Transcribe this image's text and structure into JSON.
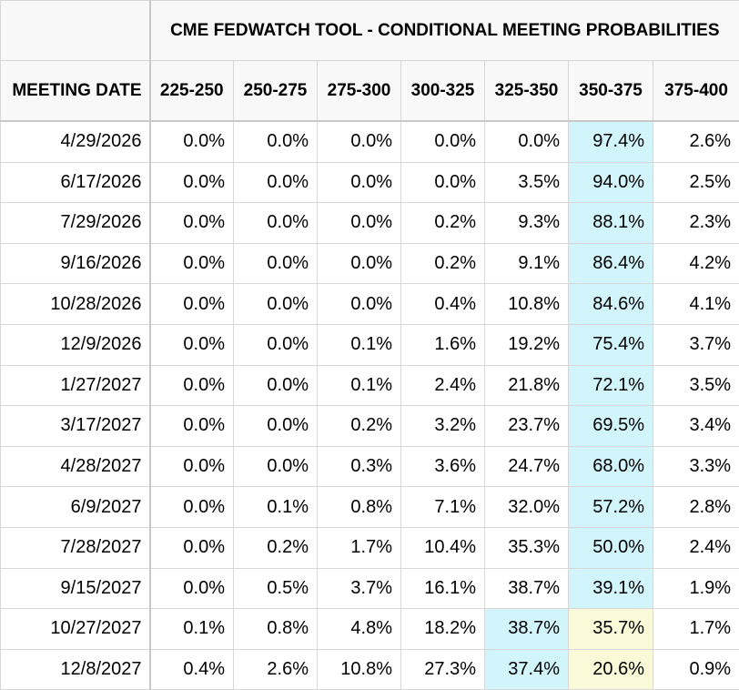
{
  "table": {
    "title": "CME FEDWATCH TOOL - CONDITIONAL MEETING PROBABILITIES",
    "date_header": "MEETING DATE",
    "highlight_colors": {
      "max": "#d2f5fb",
      "secondary": "#fafad8"
    }
  },
  "chart_data": {
    "type": "table",
    "title": "CME FEDWATCH TOOL - CONDITIONAL MEETING PROBABILITIES",
    "columns": [
      "225-250",
      "250-275",
      "275-300",
      "300-325",
      "325-350",
      "350-375",
      "375-400"
    ],
    "rows": [
      {
        "date": "4/29/2026",
        "values": [
          "0.0%",
          "0.0%",
          "0.0%",
          "0.0%",
          "0.0%",
          "97.4%",
          "2.6%"
        ],
        "hl": [
          "",
          "",
          "",
          "",
          "",
          "blue",
          ""
        ]
      },
      {
        "date": "6/17/2026",
        "values": [
          "0.0%",
          "0.0%",
          "0.0%",
          "0.0%",
          "3.5%",
          "94.0%",
          "2.5%"
        ],
        "hl": [
          "",
          "",
          "",
          "",
          "",
          "blue",
          ""
        ]
      },
      {
        "date": "7/29/2026",
        "values": [
          "0.0%",
          "0.0%",
          "0.0%",
          "0.2%",
          "9.3%",
          "88.1%",
          "2.3%"
        ],
        "hl": [
          "",
          "",
          "",
          "",
          "",
          "blue",
          ""
        ]
      },
      {
        "date": "9/16/2026",
        "values": [
          "0.0%",
          "0.0%",
          "0.0%",
          "0.2%",
          "9.1%",
          "86.4%",
          "4.2%"
        ],
        "hl": [
          "",
          "",
          "",
          "",
          "",
          "blue",
          ""
        ]
      },
      {
        "date": "10/28/2026",
        "values": [
          "0.0%",
          "0.0%",
          "0.0%",
          "0.4%",
          "10.8%",
          "84.6%",
          "4.1%"
        ],
        "hl": [
          "",
          "",
          "",
          "",
          "",
          "blue",
          ""
        ]
      },
      {
        "date": "12/9/2026",
        "values": [
          "0.0%",
          "0.0%",
          "0.1%",
          "1.6%",
          "19.2%",
          "75.4%",
          "3.7%"
        ],
        "hl": [
          "",
          "",
          "",
          "",
          "",
          "blue",
          ""
        ]
      },
      {
        "date": "1/27/2027",
        "values": [
          "0.0%",
          "0.0%",
          "0.1%",
          "2.4%",
          "21.8%",
          "72.1%",
          "3.5%"
        ],
        "hl": [
          "",
          "",
          "",
          "",
          "",
          "blue",
          ""
        ]
      },
      {
        "date": "3/17/2027",
        "values": [
          "0.0%",
          "0.0%",
          "0.2%",
          "3.2%",
          "23.7%",
          "69.5%",
          "3.4%"
        ],
        "hl": [
          "",
          "",
          "",
          "",
          "",
          "blue",
          ""
        ]
      },
      {
        "date": "4/28/2027",
        "values": [
          "0.0%",
          "0.0%",
          "0.3%",
          "3.6%",
          "24.7%",
          "68.0%",
          "3.3%"
        ],
        "hl": [
          "",
          "",
          "",
          "",
          "",
          "blue",
          ""
        ]
      },
      {
        "date": "6/9/2027",
        "values": [
          "0.0%",
          "0.1%",
          "0.8%",
          "7.1%",
          "32.0%",
          "57.2%",
          "2.8%"
        ],
        "hl": [
          "",
          "",
          "",
          "",
          "",
          "blue",
          ""
        ]
      },
      {
        "date": "7/28/2027",
        "values": [
          "0.0%",
          "0.2%",
          "1.7%",
          "10.4%",
          "35.3%",
          "50.0%",
          "2.4%"
        ],
        "hl": [
          "",
          "",
          "",
          "",
          "",
          "blue",
          ""
        ]
      },
      {
        "date": "9/15/2027",
        "values": [
          "0.0%",
          "0.5%",
          "3.7%",
          "16.1%",
          "38.7%",
          "39.1%",
          "1.9%"
        ],
        "hl": [
          "",
          "",
          "",
          "",
          "",
          "blue",
          ""
        ]
      },
      {
        "date": "10/27/2027",
        "values": [
          "0.1%",
          "0.8%",
          "4.8%",
          "18.2%",
          "38.7%",
          "35.7%",
          "1.7%"
        ],
        "hl": [
          "",
          "",
          "",
          "",
          "blue",
          "yellow",
          ""
        ]
      },
      {
        "date": "12/8/2027",
        "values": [
          "0.4%",
          "2.6%",
          "10.8%",
          "27.3%",
          "37.4%",
          "20.6%",
          "0.9%"
        ],
        "hl": [
          "",
          "",
          "",
          "",
          "blue",
          "yellow",
          ""
        ]
      }
    ]
  }
}
